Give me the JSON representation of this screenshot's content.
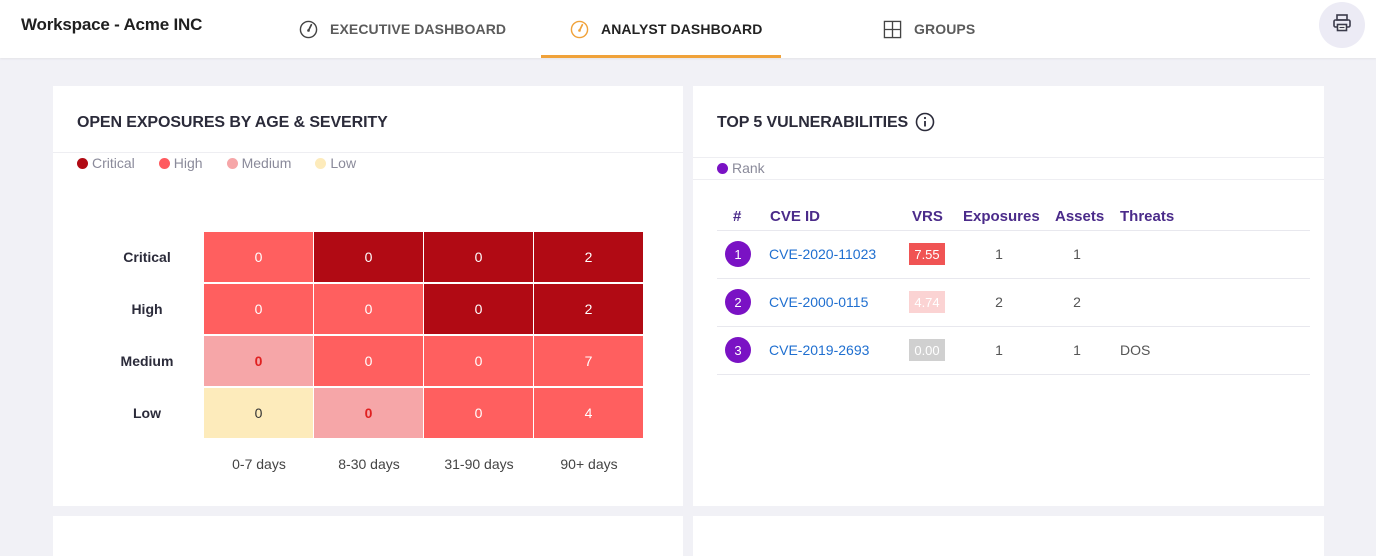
{
  "header": {
    "workspace_title": "Workspace - Acme INC",
    "tabs": [
      {
        "label": "EXECUTIVE DASHBOARD",
        "icon": "gauge-icon"
      },
      {
        "label": "ANALYST DASHBOARD",
        "icon": "gauge-icon",
        "active": true
      },
      {
        "label": "GROUPS",
        "icon": "grid-icon"
      }
    ],
    "print_icon": "printer-icon"
  },
  "exposures": {
    "title": "OPEN EXPOSURES BY AGE & SEVERITY",
    "legend": [
      {
        "label": "Critical",
        "color": "#b10a14"
      },
      {
        "label": "High",
        "color": "#ff5a5f"
      },
      {
        "label": "Medium",
        "color": "#f6a6a8"
      },
      {
        "label": "Low",
        "color": "#fdebbb"
      }
    ],
    "rows": [
      "Critical",
      "High",
      "Medium",
      "Low"
    ],
    "columns": [
      "0-7 days",
      "8-30 days",
      "31-90 days",
      "90+ days"
    ],
    "cells": [
      [
        {
          "v": "0",
          "bg": "#ff5f5f"
        },
        {
          "v": "0",
          "bg": "#b10a14"
        },
        {
          "v": "0",
          "bg": "#b10a14"
        },
        {
          "v": "2",
          "bg": "#b10a14"
        }
      ],
      [
        {
          "v": "0",
          "bg": "#ff5f5f"
        },
        {
          "v": "0",
          "bg": "#ff5f5f"
        },
        {
          "v": "0",
          "bg": "#b10a14"
        },
        {
          "v": "2",
          "bg": "#b10a14"
        }
      ],
      [
        {
          "v": "0",
          "bg": "#f6a6a8",
          "fg": "#e02020"
        },
        {
          "v": "0",
          "bg": "#ff5f5f"
        },
        {
          "v": "0",
          "bg": "#ff5f5f"
        },
        {
          "v": "7",
          "bg": "#ff5f5f"
        }
      ],
      [
        {
          "v": "0",
          "bg": "#fdebbb",
          "fg": "#333333"
        },
        {
          "v": "0",
          "bg": "#f6a6a8",
          "fg": "#e02020"
        },
        {
          "v": "0",
          "bg": "#ff5f5f"
        },
        {
          "v": "4",
          "bg": "#ff5f5f"
        }
      ]
    ]
  },
  "vulns": {
    "title": "TOP 5 VULNERABILITIES",
    "info_icon": "info-icon",
    "legend_label": "Rank",
    "legend_color": "#7a12c4",
    "headers": {
      "rank": "#",
      "cve": "CVE ID",
      "vrs": "VRS",
      "exposures": "Exposures",
      "assets": "Assets",
      "threats": "Threats"
    },
    "rows": [
      {
        "rank": "1",
        "cve": "CVE-2020-11023",
        "vrs": "7.55",
        "vrs_color": "#f05454",
        "exposures": "1",
        "assets": "1",
        "threats": ""
      },
      {
        "rank": "2",
        "cve": "CVE-2000-0115",
        "vrs": "4.74",
        "vrs_color": "#fbd3d3",
        "exposures": "2",
        "assets": "2",
        "threats": ""
      },
      {
        "rank": "3",
        "cve": "CVE-2019-2693",
        "vrs": "0.00",
        "vrs_color": "#d0d0d0",
        "exposures": "1",
        "assets": "1",
        "threats": "DOS"
      }
    ]
  }
}
